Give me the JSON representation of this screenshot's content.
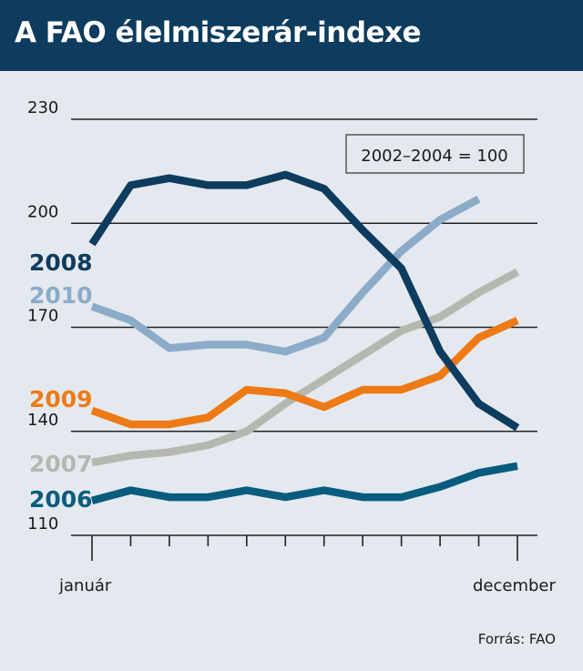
{
  "title": "A FAO élelmiszerár-indexe",
  "source": "Forrás: FAO",
  "chart_data": {
    "type": "line",
    "annotation": "2002–2004 = 100",
    "ylim": [
      110,
      230
    ],
    "yticks": [
      230,
      200,
      170,
      140,
      110
    ],
    "x_labels": {
      "start": "január",
      "end": "december"
    },
    "x": [
      1,
      2,
      3,
      4,
      5,
      6,
      7,
      8,
      9,
      10,
      11,
      12
    ],
    "grid": true,
    "series": [
      {
        "name": "2007",
        "color": "#b4b8ae",
        "label_color": "#b4b8ae",
        "values": [
          131,
          133,
          134,
          136,
          140,
          148,
          155,
          162,
          169,
          173,
          180,
          186
        ]
      },
      {
        "name": "2010",
        "color": "#8cabc9",
        "label_color": "#8cabc9",
        "values": [
          176,
          172,
          164,
          165,
          165,
          163,
          167,
          180,
          192,
          201,
          207,
          null
        ]
      },
      {
        "name": "2009",
        "color": "#ee7a16",
        "label_color": "#ee7a16",
        "values": [
          146,
          142,
          142,
          144,
          152,
          151,
          147,
          152,
          152,
          156,
          167,
          172
        ]
      },
      {
        "name": "2006",
        "color": "#085c7e",
        "label_color": "#085c7e",
        "values": [
          120,
          123,
          121,
          121,
          123,
          121,
          123,
          121,
          121,
          124,
          128,
          130
        ]
      },
      {
        "name": "2008",
        "color": "#0d3c5e",
        "label_color": "#0d3c5e",
        "values": [
          194,
          211,
          213,
          211,
          211,
          214,
          210,
          198,
          187,
          163,
          148,
          141
        ]
      }
    ]
  }
}
